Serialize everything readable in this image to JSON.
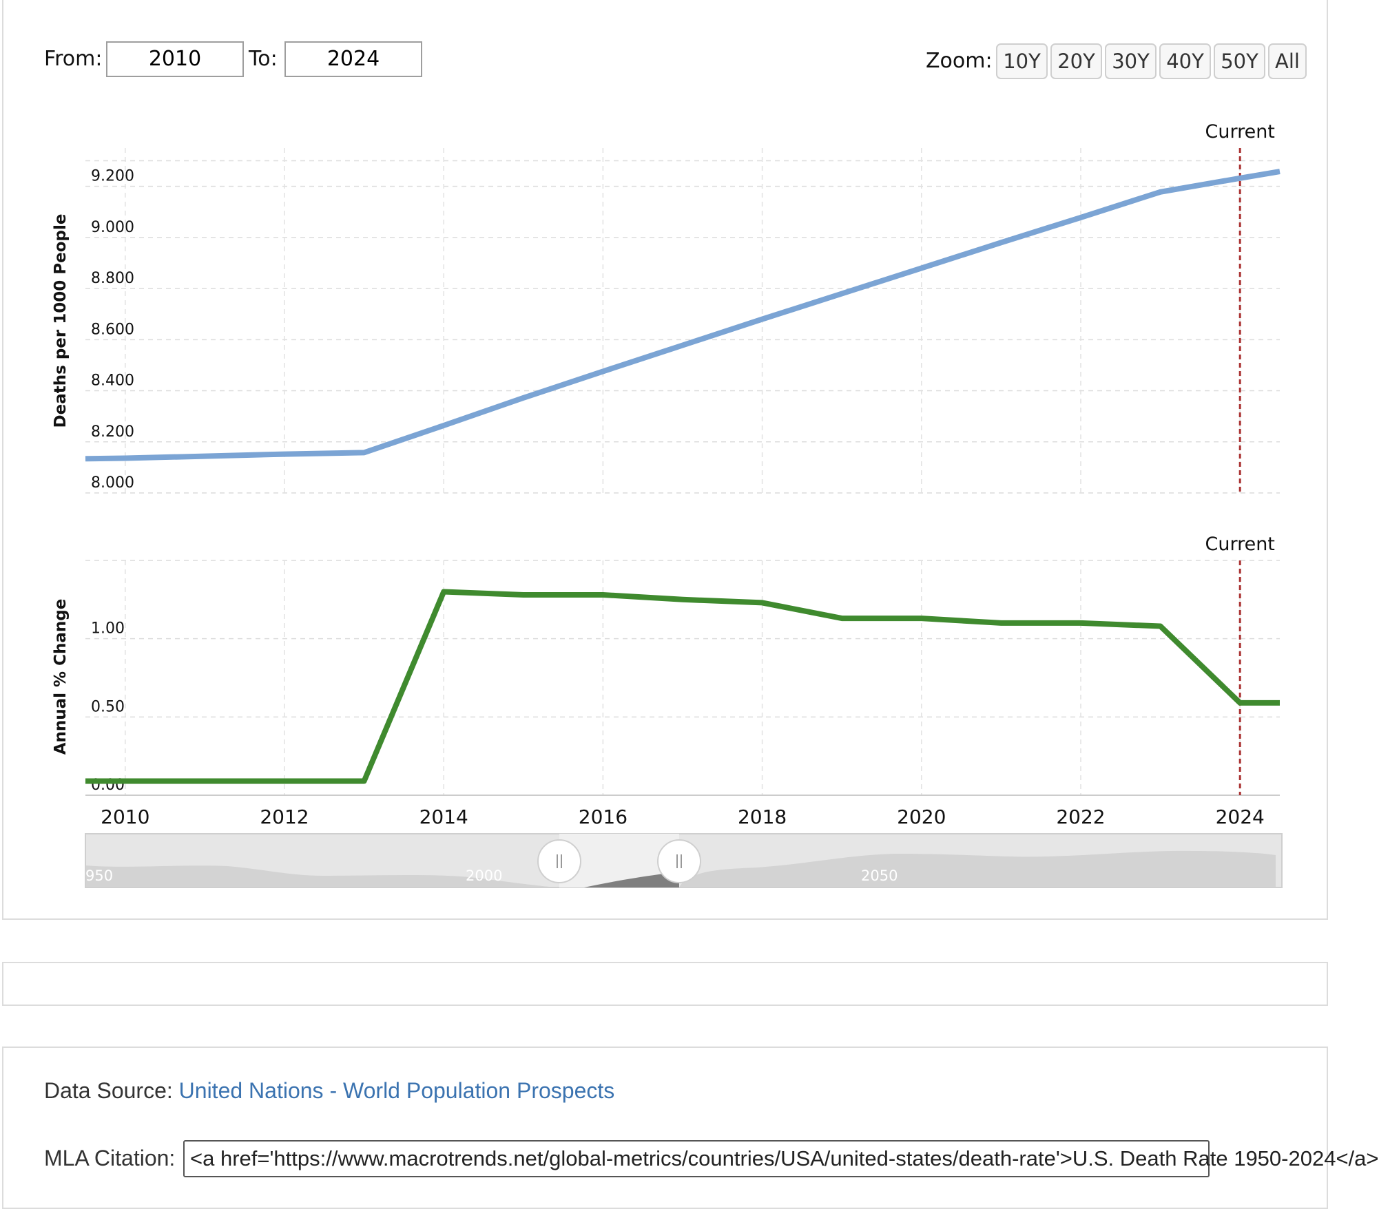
{
  "controls": {
    "from_label": "From:",
    "from_value": "2010",
    "to_label": "To:",
    "to_value": "2024",
    "zoom_label": "Zoom:",
    "zoom_options": [
      "10Y",
      "20Y",
      "30Y",
      "40Y",
      "50Y",
      "All"
    ]
  },
  "chart_data": [
    {
      "type": "line",
      "title": "",
      "xlabel": "",
      "ylabel": "Deaths per 1000 People",
      "x": [
        2009.5,
        2010,
        2011,
        2012,
        2013,
        2014,
        2015,
        2016,
        2017,
        2018,
        2019,
        2020,
        2021,
        2022,
        2023,
        2024,
        2024.5
      ],
      "series": [
        {
          "values": [
            8.134,
            8.136,
            8.144,
            8.152,
            8.158,
            8.264,
            8.372,
            8.476,
            8.578,
            8.68,
            8.78,
            8.88,
            8.98,
            9.078,
            9.178,
            9.232,
            9.258
          ]
        }
      ],
      "ylim": [
        8.0,
        9.35
      ],
      "y_ticks": [
        "8.000",
        "8.200",
        "8.400",
        "8.600",
        "8.800",
        "9.000",
        "9.200"
      ],
      "marker_label": "Current",
      "marker_x": 2024,
      "grid": true,
      "line_color": "#7ba4d4"
    },
    {
      "type": "line",
      "title": "",
      "xlabel": "",
      "ylabel": "Annual % Change",
      "x": [
        2009.5,
        2010,
        2011,
        2012,
        2013,
        2014,
        2015,
        2016,
        2017,
        2018,
        2019,
        2020,
        2021,
        2022,
        2023,
        2024,
        2024.5
      ],
      "series": [
        {
          "values": [
            0.09,
            0.09,
            0.09,
            0.09,
            0.09,
            1.3,
            1.28,
            1.28,
            1.25,
            1.23,
            1.13,
            1.13,
            1.1,
            1.1,
            1.08,
            0.59,
            0.59
          ]
        }
      ],
      "ylim": [
        0.0,
        1.5
      ],
      "y_ticks": [
        "0.00",
        "0.50",
        "1.00"
      ],
      "x_ticks": [
        "2010",
        "2012",
        "2014",
        "2016",
        "2018",
        "2020",
        "2022",
        "2024"
      ],
      "marker_label": "Current",
      "marker_x": 2024,
      "grid": true,
      "line_color": "#3f8a2e"
    }
  ],
  "navigator": {
    "labels": [
      "950",
      "2000",
      "2050"
    ]
  },
  "source": {
    "label": "Data Source:",
    "link_text": "United Nations - World Population Prospects"
  },
  "citation": {
    "label": "MLA Citation:",
    "value": "<a href='https://www.macrotrends.net/global-metrics/countries/USA/united-states/death-rate'>U.S. Death Rate 1950-2024</a>"
  }
}
